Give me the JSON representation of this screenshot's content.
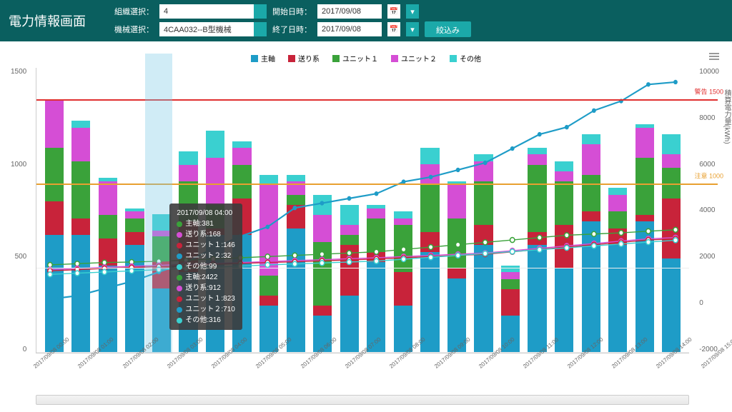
{
  "title": "電力情報画面",
  "header": {
    "org_label": "組織選択：",
    "org_value": "4",
    "machine_label": "機械選択：",
    "machine_value": "4CAA032--B型機械",
    "start_label": "開始日時：",
    "start_value": "2017/09/08",
    "end_label": "終了日時：",
    "end_value": "2017/09/08",
    "apply_label": "絞込み"
  },
  "legend": [
    {
      "label": "主軸",
      "color": "#1e9cc7"
    },
    {
      "label": "送り系",
      "color": "#c8233a"
    },
    {
      "label": "ユニット１",
      "color": "#3aa23a"
    },
    {
      "label": "ユニット２",
      "color": "#d54ed5"
    },
    {
      "label": "その他",
      "color": "#3ad0d0"
    }
  ],
  "colors": {
    "cumulative": "#1e9cc7",
    "warning": "#e03030",
    "caution": "#e8a030",
    "highlight": "rgba(120,200,230,0.35)",
    "tooltip_bg": "rgba(60,60,60,0.9)"
  },
  "chart": {
    "y_left": {
      "min": 0,
      "max": 1700,
      "ticks": [
        0,
        500,
        1000,
        1500
      ]
    },
    "y_right": {
      "min": -2000,
      "max": 10000,
      "ticks": [
        -2000,
        0,
        2000,
        4000,
        6000,
        8000,
        10000
      ],
      "label": "積算電力量(kWh)"
    },
    "thresholds": [
      {
        "value": 1500,
        "label": "警告 1500",
        "color": "#e03030"
      },
      {
        "value": 1000,
        "label": "注意 1000",
        "color": "#e8a030"
      }
    ],
    "categories": [
      "2017/09/08 00:00",
      "2017/09/08 01:00",
      "2017/09/08 02:00",
      "2017/09/08 03:00",
      "2017/09/08 04:00",
      "2017/09/08 05:00",
      "2017/09/08 06:00",
      "2017/09/08 07:00",
      "2017/09/08 08:00",
      "2017/09/08 09:00",
      "2017/09/08 10:00",
      "2017/09/08 11:00",
      "2017/09/08 12:00",
      "2017/09/08 13:00",
      "2017/09/08 14:00",
      "2017/09/08 15:00",
      "2017/09/08 16:00",
      "2017/09/08 17:00",
      "2017/09/08 18:00",
      "2017/09/08 19:00",
      "2017/09/08 20:00",
      "2017/09/08 21:00",
      "2017/09/08 22:00",
      "2017/09/08 23:00"
    ],
    "series": {
      "主軸": [
        700,
        700,
        520,
        640,
        381,
        480,
        700,
        700,
        280,
        740,
        220,
        340,
        540,
        280,
        600,
        440,
        640,
        220,
        640,
        500,
        780,
        640,
        780,
        560
      ],
      "送り系": [
        200,
        100,
        160,
        80,
        168,
        300,
        40,
        220,
        60,
        140,
        60,
        300,
        60,
        200,
        120,
        60,
        120,
        160,
        80,
        260,
        60,
        100,
        40,
        360
      ],
      "ユニット１": [
        320,
        340,
        140,
        80,
        146,
        240,
        140,
        200,
        120,
        60,
        380,
        60,
        200,
        280,
        280,
        300,
        260,
        60,
        400,
        260,
        220,
        100,
        340,
        180
      ],
      "ユニット２": [
        280,
        200,
        200,
        40,
        32,
        100,
        280,
        100,
        540,
        80,
        160,
        60,
        60,
        40,
        120,
        200,
        120,
        40,
        60,
        60,
        180,
        100,
        180,
        80
      ],
      "その他": [
        0,
        40,
        20,
        20,
        99,
        80,
        160,
        40,
        60,
        40,
        120,
        120,
        20,
        40,
        100,
        20,
        40,
        40,
        40,
        60,
        60,
        40,
        20,
        120
      ]
    },
    "cumulative": [
      260,
      400,
      700,
      1000,
      1400,
      1800,
      2400,
      2900,
      3300,
      4100,
      4300,
      4500,
      4700,
      5200,
      5400,
      5700,
      6000,
      6600,
      7200,
      7500,
      8200,
      8600,
      9300,
      9400
    ],
    "avg_lines": [
      {
        "name": "avg-主軸",
        "color": "#3aa23a",
        "values": [
          1700,
          1750,
          1800,
          1820,
          1850,
          1900,
          1950,
          2000,
          2050,
          2100,
          2150,
          2200,
          2250,
          2350,
          2450,
          2550,
          2650,
          2750,
          2850,
          2950,
          3000,
          3050,
          3120,
          3180
        ]
      },
      {
        "name": "avg-送り系",
        "color": "#d54ed5",
        "values": [
          1500,
          1550,
          1600,
          1640,
          1680,
          1720,
          1760,
          1800,
          1840,
          1880,
          1920,
          1960,
          2000,
          2050,
          2100,
          2150,
          2200,
          2300,
          2400,
          2500,
          2600,
          2700,
          2800,
          2850
        ]
      },
      {
        "name": "avg-ユニット１",
        "color": "#c8233a",
        "values": [
          1450,
          1500,
          1550,
          1590,
          1630,
          1670,
          1720,
          1760,
          1800,
          1830,
          1870,
          1910,
          1950,
          2000,
          2050,
          2100,
          2150,
          2250,
          2350,
          2450,
          2550,
          2650,
          2750,
          2800
        ]
      },
      {
        "name": "avg-その他",
        "color": "#3ad0d0",
        "values": [
          1300,
          1350,
          1400,
          1450,
          1500,
          1550,
          1600,
          1650,
          1700,
          1740,
          1780,
          1820,
          1860,
          1940,
          2020,
          2100,
          2180,
          2260,
          2340,
          2420,
          2500,
          2580,
          2660,
          2740
        ]
      }
    ],
    "highlight_index": 4,
    "tooltip": {
      "title": "2017/09/08 04:00",
      "rows1": [
        {
          "color": "#3aa23a",
          "text": "主軸:381"
        },
        {
          "color": "#d54ed5",
          "text": "送り系:168"
        },
        {
          "color": "#c8233a",
          "text": "ユニット１:146"
        },
        {
          "color": "#1e9cc7",
          "text": "ユニット２:32"
        },
        {
          "color": "#3ad0d0",
          "text": "その他:99"
        }
      ],
      "rows2": [
        {
          "color": "#3aa23a",
          "text": "主軸:2422"
        },
        {
          "color": "#d54ed5",
          "text": "送り系:912"
        },
        {
          "color": "#c8233a",
          "text": "ユニット１:823"
        },
        {
          "color": "#1e9cc7",
          "text": "ユニット２:710"
        },
        {
          "color": "#3ad0d0",
          "text": "その他:316"
        }
      ]
    }
  }
}
